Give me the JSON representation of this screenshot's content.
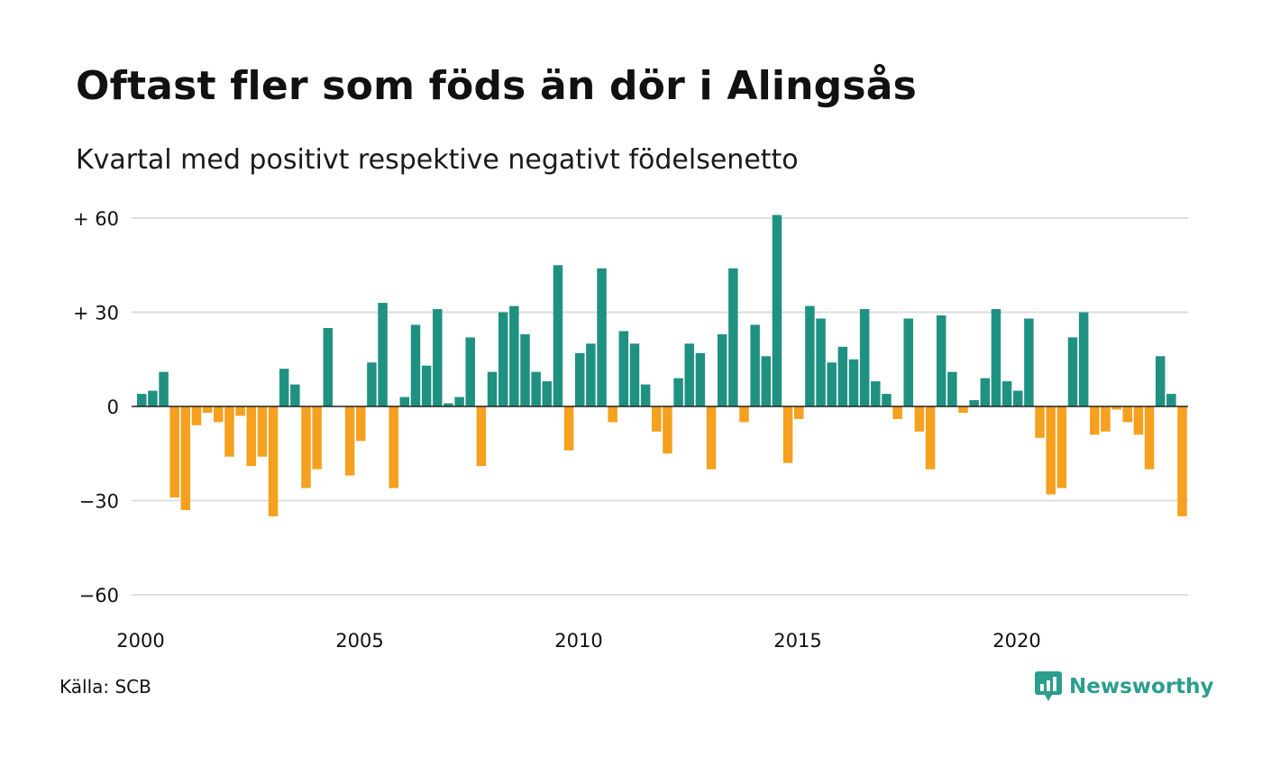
{
  "title": "Oftast fler som föds än dör i Alingsås",
  "subtitle": "Kvartal med positivt respektive negativt födelsenetto",
  "source": "Källa: SCB",
  "brand": {
    "name": "Newsworthy",
    "icon": "newsworthy-logo-icon"
  },
  "colors": {
    "positive": "#1f9181",
    "negative": "#f5a01e",
    "grid": "#dddddd",
    "zero": "#222222",
    "brand": "#2b9e8c"
  },
  "chart_data": {
    "type": "bar",
    "title": "Oftast fler som föds än dör i Alingsås",
    "subtitle": "Kvartal med positivt respektive negativt födelsenetto",
    "x_start": 2000.0,
    "x_step": 0.25,
    "ylim": [
      -60,
      60
    ],
    "yticks": [
      {
        "value": 60,
        "label": "+ 60"
      },
      {
        "value": 30,
        "label": "+ 30"
      },
      {
        "value": 0,
        "label": "0"
      },
      {
        "value": -30,
        "label": "−30"
      },
      {
        "value": -60,
        "label": "−60"
      }
    ],
    "xticks": [
      {
        "value": 2000,
        "label": "2000"
      },
      {
        "value": 2005,
        "label": "2005"
      },
      {
        "value": 2010,
        "label": "2010"
      },
      {
        "value": 2015,
        "label": "2015"
      },
      {
        "value": 2020,
        "label": "2020"
      }
    ],
    "grid": true,
    "values": [
      4,
      5,
      11,
      -29,
      -33,
      -6,
      -2,
      -5,
      -16,
      -3,
      -19,
      -16,
      -35,
      12,
      7,
      -26,
      -20,
      25,
      0,
      -22,
      -11,
      14,
      33,
      -26,
      3,
      26,
      13,
      31,
      1,
      3,
      22,
      -19,
      11,
      30,
      32,
      23,
      11,
      8,
      45,
      -14,
      17,
      20,
      44,
      -5,
      24,
      20,
      7,
      -8,
      -15,
      9,
      20,
      17,
      -20,
      23,
      44,
      -5,
      26,
      16,
      61,
      -18,
      -4,
      32,
      28,
      14,
      19,
      15,
      31,
      8,
      4,
      -4,
      28,
      -8,
      -20,
      29,
      11,
      -2,
      2,
      9,
      31,
      8,
      5,
      28,
      -10,
      -28,
      -26,
      22,
      30,
      -9,
      -8,
      -1,
      -5,
      -9,
      -20,
      16,
      4,
      -35
    ]
  }
}
